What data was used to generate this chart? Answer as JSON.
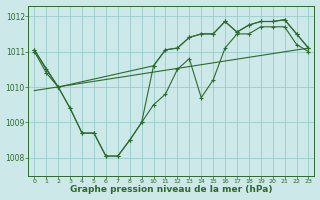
{
  "background_color": "#cce8e8",
  "grid_color": "#99cccc",
  "line_color": "#2d6a2d",
  "xlabel": "Graphe pression niveau de la mer (hPa)",
  "xlabel_fontsize": 6.5,
  "xlim": [
    -0.5,
    23.5
  ],
  "ylim": [
    1007.5,
    1012.3
  ],
  "yticks": [
    1008,
    1009,
    1010,
    1011,
    1012
  ],
  "xticks": [
    0,
    1,
    2,
    3,
    4,
    5,
    6,
    7,
    8,
    9,
    10,
    11,
    12,
    13,
    14,
    15,
    16,
    17,
    18,
    19,
    20,
    21,
    22,
    23
  ],
  "series1_x": [
    0,
    1,
    2,
    3,
    4,
    5,
    6,
    7,
    8,
    9,
    10,
    11,
    12,
    13,
    14,
    15,
    16,
    17,
    18,
    19,
    20,
    21,
    22,
    23
  ],
  "series1_y": [
    1011.0,
    1010.4,
    1010.0,
    1009.4,
    1008.7,
    1008.7,
    1008.05,
    1008.05,
    1008.5,
    1009.0,
    1009.5,
    1009.8,
    1010.5,
    1010.8,
    1009.7,
    1010.2,
    1011.1,
    1011.5,
    1011.5,
    1011.7,
    1011.7,
    1011.7,
    1011.2,
    1011.0
  ],
  "series2_x": [
    0,
    1,
    2,
    10,
    11,
    12,
    13,
    14,
    15,
    16,
    17,
    18,
    19,
    20,
    21,
    22,
    23
  ],
  "series2_y": [
    1011.05,
    1010.5,
    1010.0,
    1010.6,
    1011.05,
    1011.1,
    1011.4,
    1011.5,
    1011.5,
    1011.85,
    1011.55,
    1011.75,
    1011.85,
    1011.85,
    1011.9,
    1011.5,
    1011.1
  ],
  "series3_x": [
    0,
    2,
    3,
    4,
    5,
    6,
    7,
    8,
    9,
    10,
    11,
    12,
    13,
    14,
    15,
    16,
    17,
    18,
    19,
    20,
    21,
    22,
    23
  ],
  "series3_y": [
    1011.05,
    1010.0,
    1009.4,
    1008.7,
    1008.7,
    1008.05,
    1008.05,
    1008.5,
    1009.0,
    1010.6,
    1011.05,
    1011.1,
    1011.4,
    1011.5,
    1011.5,
    1011.85,
    1011.55,
    1011.75,
    1011.85,
    1011.85,
    1011.9,
    1011.5,
    1011.1
  ],
  "series4_x": [
    0,
    23
  ],
  "series4_y": [
    1009.9,
    1011.1
  ]
}
